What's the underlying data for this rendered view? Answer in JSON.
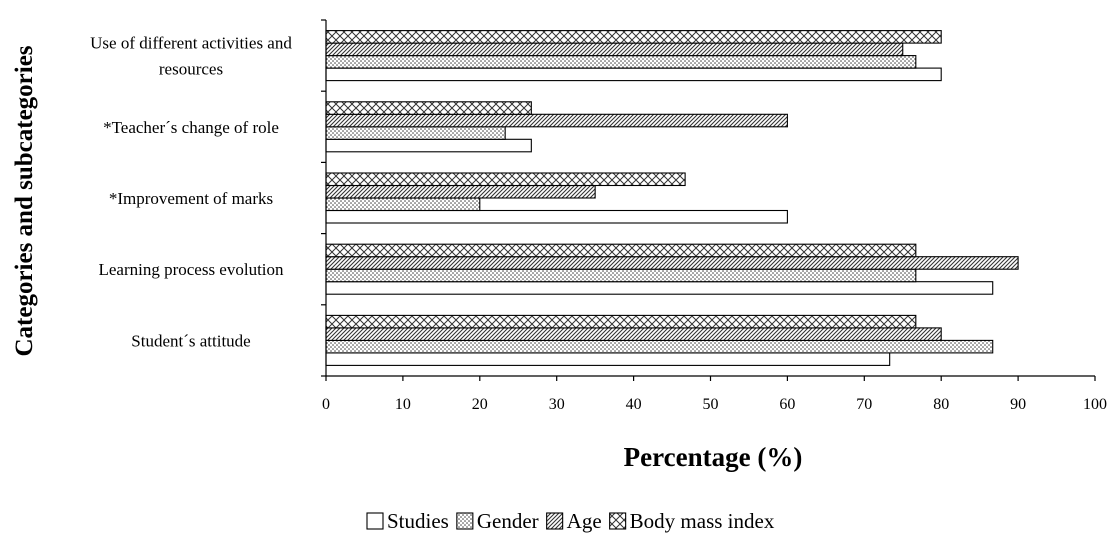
{
  "chart_data": {
    "type": "bar",
    "orientation": "horizontal",
    "xlabel": "Percentage (%)",
    "ylabel": "Categories and subcategories",
    "xlim": [
      0,
      100
    ],
    "xticks": [
      0,
      10,
      20,
      30,
      40,
      50,
      60,
      70,
      80,
      90,
      100
    ],
    "categories": [
      [
        "Use of different activities and",
        "resources"
      ],
      [
        "*Teacher´s change of role"
      ],
      [
        "*Improvement of marks"
      ],
      [
        "Learning process evolution"
      ],
      [
        "Student´s attitude"
      ]
    ],
    "series": [
      {
        "name": "Studies",
        "pattern": "none",
        "values": [
          80,
          26.7,
          60,
          86.7,
          73.3
        ]
      },
      {
        "name": "Gender",
        "pattern": "dots",
        "values": [
          76.7,
          23.3,
          20,
          76.7,
          86.7
        ]
      },
      {
        "name": "Age",
        "pattern": "diagonal",
        "values": [
          75,
          60,
          35,
          90,
          80
        ]
      },
      {
        "name": "Body mass index",
        "pattern": "crosshatch",
        "values": [
          80,
          26.7,
          46.7,
          76.7,
          76.7
        ]
      }
    ],
    "legend_position": "bottom",
    "grid": false,
    "colors": {
      "bar_stroke": "#000000",
      "bar_fill": "#ffffff",
      "pattern": "#333333"
    }
  }
}
